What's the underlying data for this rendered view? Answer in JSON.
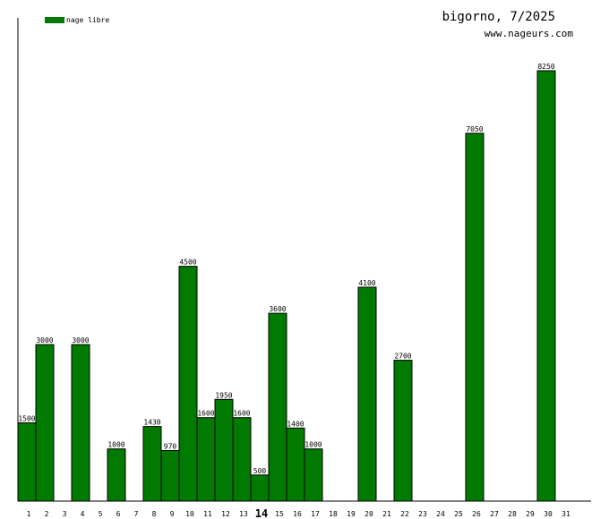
{
  "header": {
    "title": "bigorno, 7/2025",
    "site": "www.nageurs.com"
  },
  "legend": {
    "label": "nage libre",
    "color": "#007a00"
  },
  "chart_data": {
    "type": "bar",
    "title": "bigorno, 7/2025",
    "xlabel": "",
    "ylabel": "",
    "categories": [
      "1",
      "2",
      "3",
      "4",
      "5",
      "6",
      "7",
      "8",
      "9",
      "10",
      "11",
      "12",
      "13",
      "14",
      "15",
      "16",
      "17",
      "18",
      "19",
      "20",
      "21",
      "22",
      "23",
      "24",
      "25",
      "26",
      "27",
      "28",
      "29",
      "30",
      "31"
    ],
    "highlight_category": "14",
    "series": [
      {
        "name": "nage libre",
        "color": "#007a00",
        "values": [
          1500,
          3000,
          0,
          3000,
          0,
          1000,
          0,
          1430,
          970,
          4500,
          1600,
          1950,
          1600,
          500,
          3600,
          1400,
          1000,
          0,
          0,
          4100,
          0,
          2700,
          0,
          0,
          0,
          7050,
          0,
          0,
          0,
          8250,
          0
        ]
      }
    ],
    "ylim": [
      0,
      8250
    ],
    "grid": false,
    "legend_position": "top-left"
  }
}
